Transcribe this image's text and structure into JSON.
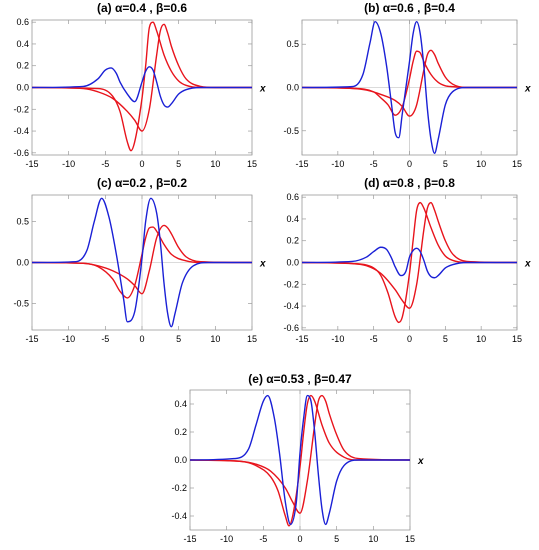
{
  "figure": {
    "colors": {
      "red_series": "#e8141c",
      "blue_series": "#1a20d6"
    }
  },
  "chart_data": [
    {
      "type": "line",
      "title": "(a) α=0.4 , β=0.6",
      "xlabel": "x",
      "ylabel": "",
      "xlim": [
        -15,
        15
      ],
      "ylim": [
        -0.62,
        0.62
      ],
      "xticks": [
        "-15",
        "-10",
        "-5",
        "0",
        "5",
        "10",
        "15"
      ],
      "yticks": [
        "-0.6",
        "-0.4",
        "-0.2",
        "0.0",
        "0.2",
        "0.4",
        "0.6"
      ],
      "ytick_values": [
        -0.6,
        -0.4,
        -0.2,
        0.0,
        0.2,
        0.4,
        0.6
      ],
      "grid": false,
      "legend": "none",
      "series": [
        {
          "color": "red",
          "x": [
            -15,
            -6,
            -4,
            -3,
            -2,
            -1.5,
            -1,
            0,
            0.5,
            1,
            1.5,
            2,
            3,
            4,
            5,
            6,
            8,
            10,
            15
          ],
          "y": [
            0,
            -0.01,
            -0.08,
            -0.22,
            -0.5,
            -0.58,
            -0.5,
            -0.1,
            0.2,
            0.55,
            0.6,
            0.52,
            0.3,
            0.15,
            0.06,
            0.02,
            0,
            0,
            0
          ]
        },
        {
          "color": "red",
          "x": [
            -15,
            -8,
            -6,
            -4,
            -2,
            -1,
            0,
            1,
            2,
            2.5,
            3,
            3.5,
            4,
            5,
            6,
            8,
            10,
            15
          ],
          "y": [
            0,
            -0.01,
            -0.04,
            -0.1,
            -0.22,
            -0.3,
            -0.4,
            -0.2,
            0.3,
            0.52,
            0.58,
            0.5,
            0.38,
            0.2,
            0.08,
            0.01,
            0,
            0
          ]
        },
        {
          "color": "blue",
          "x": [
            -15,
            -8,
            -6,
            -5,
            -4.2,
            -3.5,
            -3,
            -2,
            -1,
            0,
            0.5,
            1,
            1.5,
            2,
            2.5,
            3,
            3.5,
            4,
            5,
            6,
            8,
            15
          ],
          "y": [
            0,
            0.01,
            0.08,
            0.16,
            0.18,
            0.13,
            0.05,
            -0.06,
            -0.13,
            0.05,
            0.15,
            0.19,
            0.16,
            0.05,
            -0.08,
            -0.16,
            -0.18,
            -0.15,
            -0.06,
            -0.02,
            0,
            0
          ]
        }
      ]
    },
    {
      "type": "line",
      "title": "(b) α=0.6 , β=0.4",
      "xlabel": "x",
      "ylabel": "",
      "xlim": [
        -15,
        15
      ],
      "ylim": [
        -0.78,
        0.78
      ],
      "xticks": [
        "-15",
        "-10",
        "-5",
        "0",
        "5",
        "10",
        "15"
      ],
      "yticks": [
        "-0.5",
        "0.0",
        "0.5"
      ],
      "ytick_values": [
        -0.5,
        0.0,
        0.5
      ],
      "grid": false,
      "legend": "none",
      "series": [
        {
          "color": "red",
          "x": [
            -15,
            -8,
            -5,
            -4,
            -3,
            -2,
            -1,
            0,
            0.5,
            1,
            1.5,
            2,
            3,
            4,
            5,
            6,
            8,
            15
          ],
          "y": [
            0,
            -0.01,
            -0.05,
            -0.12,
            -0.2,
            -0.32,
            -0.22,
            0.1,
            0.3,
            0.42,
            0.4,
            0.3,
            0.15,
            0.06,
            0.02,
            0.01,
            0,
            0
          ]
        },
        {
          "color": "red",
          "x": [
            -15,
            -8,
            -6,
            -4,
            -2,
            -1,
            0,
            0.5,
            1,
            2,
            2.5,
            3,
            3.5,
            4,
            5,
            6,
            8,
            15
          ],
          "y": [
            0,
            -0.01,
            -0.03,
            -0.08,
            -0.15,
            -0.22,
            -0.33,
            -0.3,
            -0.2,
            0.2,
            0.38,
            0.43,
            0.38,
            0.28,
            0.12,
            0.04,
            0,
            0
          ]
        },
        {
          "color": "blue",
          "x": [
            -15,
            -8,
            -6.5,
            -5.5,
            -4.8,
            -4,
            -3.2,
            -2.5,
            -2,
            -1.5,
            -1,
            0,
            0.5,
            1,
            1.5,
            2,
            2.5,
            3,
            3.5,
            4,
            5,
            6,
            8,
            15
          ],
          "y": [
            0,
            0.01,
            0.15,
            0.52,
            0.76,
            0.62,
            0.25,
            -0.2,
            -0.52,
            -0.58,
            -0.3,
            0.3,
            0.62,
            0.76,
            0.62,
            0.25,
            -0.25,
            -0.6,
            -0.76,
            -0.6,
            -0.2,
            -0.05,
            0,
            0
          ]
        }
      ]
    },
    {
      "type": "line",
      "title": "(c) α=0.2 , β=0.2",
      "xlabel": "x",
      "ylabel": "",
      "xlim": [
        -15,
        15
      ],
      "ylim": [
        -0.82,
        0.82
      ],
      "xticks": [
        "-15",
        "-10",
        "-5",
        "0",
        "5",
        "10",
        "15"
      ],
      "yticks": [
        "-0.5",
        "0.0",
        "0.5"
      ],
      "ytick_values": [
        -0.5,
        0.0,
        0.5
      ],
      "grid": false,
      "legend": "none",
      "series": [
        {
          "color": "red",
          "x": [
            -15,
            -8,
            -6,
            -4,
            -3,
            -2,
            -1,
            0,
            0.5,
            1,
            1.5,
            2,
            3,
            4,
            6,
            8,
            15
          ],
          "y": [
            0,
            -0.01,
            -0.05,
            -0.2,
            -0.35,
            -0.43,
            -0.28,
            0.1,
            0.3,
            0.42,
            0.43,
            0.38,
            0.22,
            0.1,
            0.02,
            0,
            0
          ]
        },
        {
          "color": "red",
          "x": [
            -15,
            -8,
            -6,
            -4,
            -2,
            -1,
            0,
            1,
            2,
            3,
            3.5,
            4,
            5,
            6,
            8,
            15
          ],
          "y": [
            0,
            -0.01,
            -0.04,
            -0.1,
            -0.2,
            -0.28,
            -0.38,
            -0.1,
            0.3,
            0.45,
            0.42,
            0.35,
            0.18,
            0.07,
            0.01,
            0
          ]
        },
        {
          "color": "blue",
          "x": [
            -15,
            -9,
            -7.5,
            -6.5,
            -5.5,
            -4.5,
            -3.5,
            -2.5,
            -2,
            -1,
            0,
            0.5,
            1.2,
            2,
            2.5,
            3,
            3.5,
            4,
            4.5,
            5.5,
            7,
            9,
            15
          ],
          "y": [
            0,
            0.01,
            0.15,
            0.5,
            0.78,
            0.55,
            0.1,
            -0.45,
            -0.72,
            -0.6,
            0.05,
            0.5,
            0.78,
            0.6,
            0.25,
            -0.25,
            -0.62,
            -0.78,
            -0.62,
            -0.25,
            -0.04,
            0,
            0
          ]
        }
      ]
    },
    {
      "type": "line",
      "title": "(d) α=0.8 , β=0.8",
      "xlabel": "x",
      "ylabel": "",
      "xlim": [
        -15,
        15
      ],
      "ylim": [
        -0.62,
        0.62
      ],
      "xticks": [
        "-15",
        "-10",
        "-5",
        "0",
        "5",
        "10",
        "15"
      ],
      "yticks": [
        "-0.6",
        "-0.4",
        "-0.2",
        "0.0",
        "0.2",
        "0.4",
        "0.6"
      ],
      "ytick_values": [
        -0.6,
        -0.4,
        -0.2,
        0.0,
        0.2,
        0.4,
        0.6
      ],
      "grid": false,
      "legend": "none",
      "series": [
        {
          "color": "red",
          "x": [
            -15,
            -8,
            -5,
            -4,
            -3,
            -2,
            -1.5,
            -1,
            0,
            0.5,
            1,
            1.5,
            2,
            3,
            4,
            5,
            6,
            8,
            15
          ],
          "y": [
            0,
            -0.01,
            -0.05,
            -0.12,
            -0.28,
            -0.5,
            -0.55,
            -0.5,
            -0.1,
            0.2,
            0.48,
            0.55,
            0.5,
            0.32,
            0.16,
            0.06,
            0.02,
            0,
            0
          ]
        },
        {
          "color": "red",
          "x": [
            -15,
            -8,
            -6,
            -4,
            -2,
            -1,
            0,
            1,
            2,
            2.5,
            3,
            3.5,
            4,
            5,
            6,
            8,
            15
          ],
          "y": [
            0,
            -0.01,
            -0.03,
            -0.1,
            -0.25,
            -0.35,
            -0.42,
            -0.2,
            0.3,
            0.5,
            0.55,
            0.48,
            0.38,
            0.2,
            0.08,
            0.01,
            0
          ]
        },
        {
          "color": "blue",
          "x": [
            -15,
            -8,
            -6,
            -5,
            -4,
            -3.2,
            -2.5,
            -2,
            -1.2,
            -0.5,
            0,
            0.5,
            1,
            1.5,
            2,
            2.5,
            3,
            3.5,
            4,
            5,
            6,
            8,
            15
          ],
          "y": [
            0,
            0.01,
            0.05,
            0.1,
            0.14,
            0.12,
            0.04,
            -0.04,
            -0.12,
            -0.08,
            0.05,
            0.11,
            0.13,
            0.1,
            0.02,
            -0.08,
            -0.13,
            -0.14,
            -0.12,
            -0.05,
            -0.02,
            0,
            0
          ]
        }
      ]
    },
    {
      "type": "line",
      "title": "(e) α=0.53 , β=0.47",
      "xlabel": "x",
      "ylabel": "",
      "xlim": [
        -15,
        15
      ],
      "ylim": [
        -0.5,
        0.5
      ],
      "xticks": [
        "-15",
        "-10",
        "-5",
        "0",
        "5",
        "10",
        "15"
      ],
      "yticks": [
        "-0.4",
        "-0.2",
        "0.0",
        "0.2",
        "0.4"
      ],
      "ytick_values": [
        -0.4,
        -0.2,
        0.0,
        0.2,
        0.4
      ],
      "grid": false,
      "legend": "none",
      "series": [
        {
          "color": "red",
          "x": [
            -15,
            -8,
            -6,
            -4,
            -3,
            -2,
            -1.5,
            -1,
            0,
            0.5,
            1,
            1.5,
            2,
            3,
            4,
            6,
            8,
            15
          ],
          "y": [
            0,
            -0.01,
            -0.04,
            -0.12,
            -0.22,
            -0.4,
            -0.47,
            -0.4,
            -0.05,
            0.2,
            0.4,
            0.46,
            0.42,
            0.25,
            0.12,
            0.02,
            0,
            0
          ]
        },
        {
          "color": "red",
          "x": [
            -15,
            -8,
            -6,
            -4,
            -2,
            -1,
            0,
            1,
            2,
            2.5,
            3,
            3.5,
            4,
            5,
            6,
            8,
            15
          ],
          "y": [
            0,
            -0.01,
            -0.03,
            -0.08,
            -0.2,
            -0.3,
            -0.38,
            -0.15,
            0.25,
            0.42,
            0.46,
            0.42,
            0.33,
            0.18,
            0.07,
            0.01,
            0
          ]
        },
        {
          "color": "blue",
          "x": [
            -15,
            -9,
            -7,
            -6,
            -5,
            -4.4,
            -3.5,
            -2.8,
            -2,
            -1.3,
            -0.5,
            0,
            0.5,
            1,
            1.5,
            2,
            2.5,
            3,
            3.5,
            4,
            5,
            6,
            8,
            15
          ],
          "y": [
            0,
            0.01,
            0.08,
            0.25,
            0.42,
            0.46,
            0.3,
            0.05,
            -0.3,
            -0.46,
            -0.3,
            0.05,
            0.3,
            0.46,
            0.42,
            0.2,
            -0.1,
            -0.35,
            -0.46,
            -0.38,
            -0.15,
            -0.04,
            0,
            0
          ]
        }
      ]
    }
  ]
}
